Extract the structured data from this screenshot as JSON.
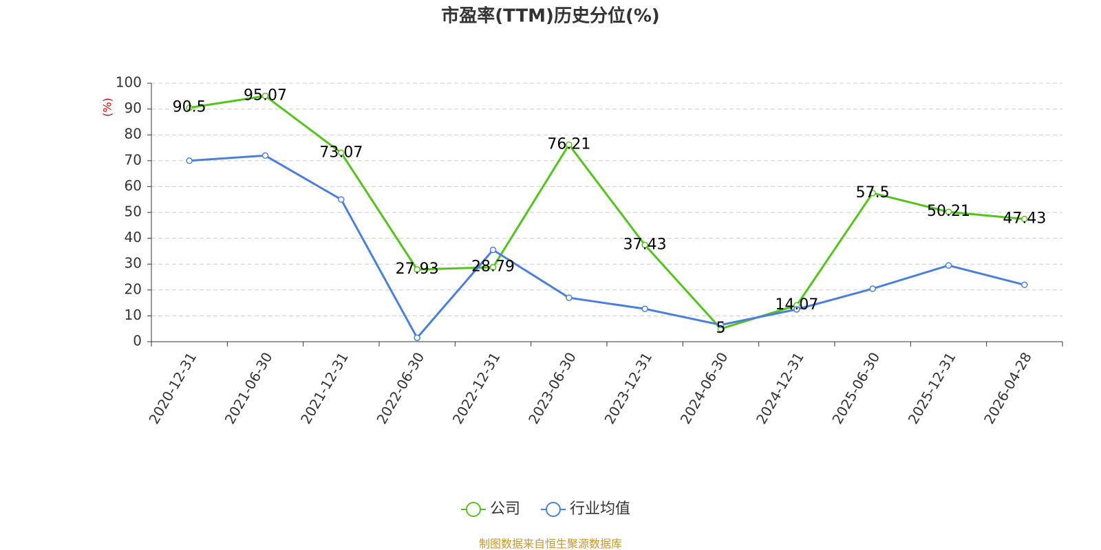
{
  "chart_data": {
    "type": "line",
    "title": "市盈率(TTM)历史分位(%)",
    "y_label": "(%)",
    "categories": [
      "2020-12-31",
      "2021-06-30",
      "2021-12-31",
      "2022-06-30",
      "2022-12-31",
      "2023-06-30",
      "2023-12-31",
      "2024-06-30",
      "2024-12-31",
      "2025-06-30",
      "2025-12-31",
      "2026-04-28"
    ],
    "series": [
      {
        "name": "公司",
        "color": "#52c41a",
        "values": [
          90.5,
          95.07,
          73.07,
          27.93,
          28.79,
          76.21,
          37.43,
          5,
          14.07,
          57.5,
          50.21,
          47.43
        ],
        "show_labels": true
      },
      {
        "name": "行业均值",
        "color": "#4a7fdc",
        "values": [
          70,
          72,
          55,
          1.5,
          35.5,
          17,
          12.7,
          6.5,
          12.5,
          20.5,
          29.5,
          22
        ],
        "show_labels": false
      }
    ],
    "ylim": [
      0,
      100
    ],
    "yticks": [
      0,
      10,
      20,
      30,
      40,
      50,
      60,
      70,
      80,
      90,
      100
    ],
    "grid": true,
    "legend": "bottom",
    "source": "制图数据来自恒生聚源数据库"
  }
}
